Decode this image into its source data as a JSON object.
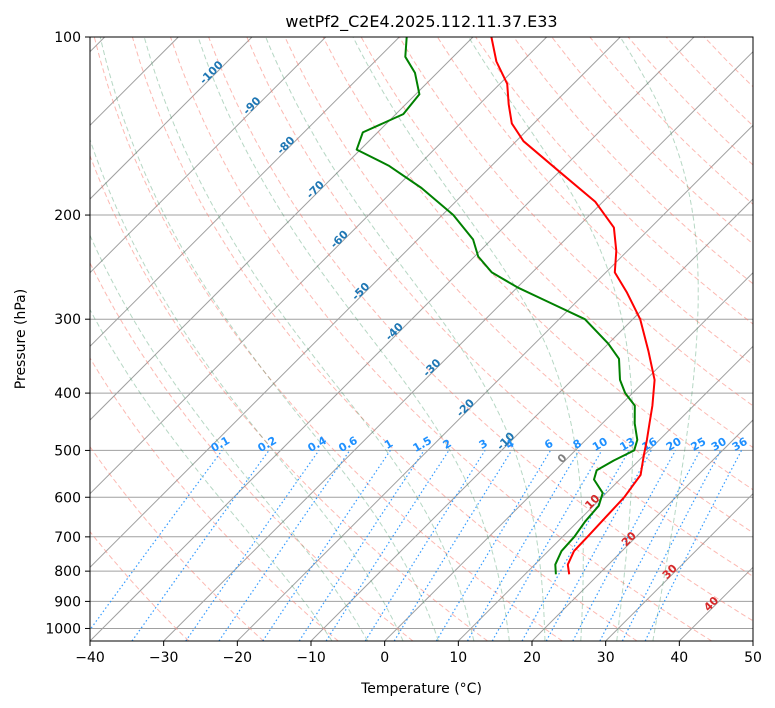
{
  "chart_data": {
    "type": "line",
    "subtype": "skew-t log-p",
    "title": "wetPf2_C2E4.2025.112.11.37.E33",
    "xlabel": "Temperature (°C)",
    "ylabel": "Pressure (hPa)",
    "xlim": [
      -40,
      50
    ],
    "ylim": [
      1050,
      100
    ],
    "y_scale": "log",
    "x_ticks": [
      -40,
      -30,
      -20,
      -10,
      0,
      10,
      20,
      30,
      40,
      50
    ],
    "y_ticks": [
      100,
      200,
      300,
      400,
      500,
      600,
      700,
      800,
      900,
      1000
    ],
    "grid": true,
    "legend": "none",
    "colors": {
      "temperature": "#ff0000",
      "dewpoint": "#008000",
      "isotherm": "#a0a0a0",
      "dry_adiabat": "#fa8072",
      "moist_adiabat": "#2e8b57",
      "mixing_ratio": "#1e90ff",
      "hgz_label": "#1f77b4",
      "dry_adiabat_label": "#d62728"
    },
    "series": [
      {
        "key": "temperature",
        "color": "#ff0000",
        "points": [
          {
            "p": 810,
            "t": 16.0
          },
          {
            "p": 780,
            "t": 14.5
          },
          {
            "p": 740,
            "t": 13.5
          },
          {
            "p": 700,
            "t": 13.4
          },
          {
            "p": 650,
            "t": 13.2
          },
          {
            "p": 600,
            "t": 13.0
          },
          {
            "p": 550,
            "t": 12.2
          },
          {
            "p": 510,
            "t": 10.0
          },
          {
            "p": 480,
            "t": 8.3
          },
          {
            "p": 450,
            "t": 6.4
          },
          {
            "p": 420,
            "t": 4.4
          },
          {
            "p": 380,
            "t": 1.2
          },
          {
            "p": 340,
            "t": -3.5
          },
          {
            "p": 300,
            "t": -9.0
          },
          {
            "p": 270,
            "t": -14.5
          },
          {
            "p": 250,
            "t": -18.8
          },
          {
            "p": 230,
            "t": -21.5
          },
          {
            "p": 210,
            "t": -25.0
          },
          {
            "p": 190,
            "t": -31.0
          },
          {
            "p": 170,
            "t": -39.5
          },
          {
            "p": 150,
            "t": -49.0
          },
          {
            "p": 140,
            "t": -53.0
          },
          {
            "p": 130,
            "t": -56.0
          },
          {
            "p": 120,
            "t": -59.0
          },
          {
            "p": 110,
            "t": -63.5
          },
          {
            "p": 100,
            "t": -67.5
          }
        ]
      },
      {
        "key": "dewpoint",
        "color": "#008000",
        "points": [
          {
            "p": 810,
            "t": 14.2
          },
          {
            "p": 780,
            "t": 12.8
          },
          {
            "p": 740,
            "t": 11.8
          },
          {
            "p": 700,
            "t": 11.6
          },
          {
            "p": 660,
            "t": 11.0
          },
          {
            "p": 620,
            "t": 10.7
          },
          {
            "p": 590,
            "t": 9.5
          },
          {
            "p": 560,
            "t": 6.5
          },
          {
            "p": 540,
            "t": 5.6
          },
          {
            "p": 520,
            "t": 6.6
          },
          {
            "p": 500,
            "t": 8.0
          },
          {
            "p": 480,
            "t": 7.0
          },
          {
            "p": 450,
            "t": 4.4
          },
          {
            "p": 420,
            "t": 2.0
          },
          {
            "p": 400,
            "t": -1.0
          },
          {
            "p": 380,
            "t": -3.5
          },
          {
            "p": 350,
            "t": -6.5
          },
          {
            "p": 330,
            "t": -10.0
          },
          {
            "p": 300,
            "t": -16.5
          },
          {
            "p": 280,
            "t": -24.0
          },
          {
            "p": 265,
            "t": -30.0
          },
          {
            "p": 250,
            "t": -35.5
          },
          {
            "p": 235,
            "t": -39.5
          },
          {
            "p": 220,
            "t": -42.5
          },
          {
            "p": 200,
            "t": -48.5
          },
          {
            "p": 180,
            "t": -56.5
          },
          {
            "p": 165,
            "t": -64.0
          },
          {
            "p": 155,
            "t": -70.5
          },
          {
            "p": 145,
            "t": -72.0
          },
          {
            "p": 135,
            "t": -69.0
          },
          {
            "p": 125,
            "t": -69.5
          },
          {
            "p": 115,
            "t": -73.0
          },
          {
            "p": 108,
            "t": -76.5
          },
          {
            "p": 100,
            "t": -79.0
          }
        ]
      }
    ],
    "reference_lines": {
      "skew_degrees": 45,
      "isotherms_step": 10,
      "dry_adiabats": [
        -30,
        -20,
        -10,
        0,
        10,
        20,
        30,
        40,
        50,
        60,
        70,
        80,
        90,
        100,
        110,
        120,
        130,
        140,
        150,
        160,
        170,
        180
      ],
      "moist_adiabats": [
        -10,
        -5,
        0,
        5,
        10,
        15,
        20,
        25,
        30,
        35
      ],
      "mixing_ratio_lines": [
        "0.1",
        "0.2",
        "0.4",
        "0.6",
        "1",
        "1.5",
        "2",
        "3",
        "4",
        "6",
        "8",
        "10",
        "13",
        "16",
        "20",
        "25",
        "30",
        "36"
      ],
      "mixing_ratio_label_pressure": 500
    },
    "annotations": {
      "hgz_labels": [
        {
          "text": "-100",
          "p": 116
        },
        {
          "text": "-90",
          "p": 132
        },
        {
          "text": "-80",
          "p": 154
        },
        {
          "text": "-70",
          "p": 183
        },
        {
          "text": "-60",
          "p": 222
        },
        {
          "text": "-50",
          "p": 272
        },
        {
          "text": "-40",
          "p": 318
        },
        {
          "text": "-30",
          "p": 366
        },
        {
          "text": "-20",
          "p": 428
        },
        {
          "text": "-10",
          "p": 487
        }
      ],
      "dry_adiabat_labels": [
        {
          "text": "0",
          "p": 521
        },
        {
          "text": "10",
          "p": 617
        },
        {
          "text": "20",
          "p": 713
        },
        {
          "text": "30",
          "p": 810
        },
        {
          "text": "40",
          "p": 918
        }
      ]
    }
  }
}
